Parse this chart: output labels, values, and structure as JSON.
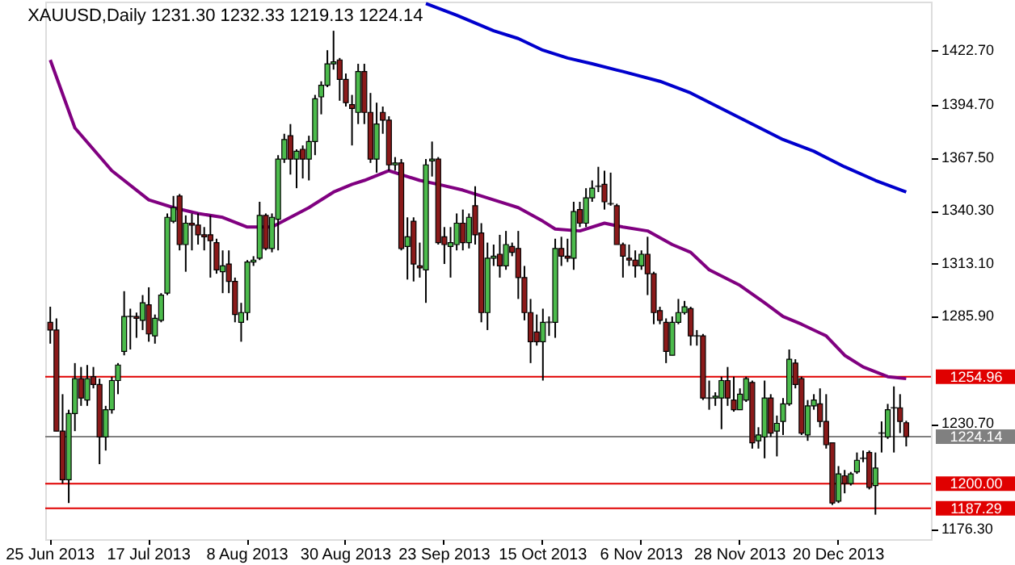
{
  "chart_data": {
    "type": "candlestick",
    "title": "XAUUSD,Daily  1231.30 1232.33 1219.13 1224.14",
    "categories": [
      "25 Jun 2013",
      null,
      null,
      null,
      null,
      null,
      null,
      null,
      null,
      null,
      null,
      null,
      null,
      null,
      null,
      null,
      "17 Jul 2013",
      null,
      null,
      null,
      null,
      null,
      null,
      null,
      null,
      null,
      null,
      null,
      null,
      null,
      null,
      null,
      "8 Aug 2013",
      null,
      null,
      null,
      null,
      null,
      null,
      null,
      null,
      null,
      null,
      null,
      null,
      null,
      null,
      null,
      "30 Aug 2013",
      null,
      null,
      null,
      null,
      null,
      null,
      null,
      null,
      null,
      null,
      null,
      null,
      null,
      null,
      null,
      "23 Sep 2013",
      null,
      null,
      null,
      null,
      null,
      null,
      null,
      null,
      null,
      null,
      null,
      null,
      null,
      null,
      null,
      "15 Oct 2013",
      null,
      null,
      null,
      null,
      null,
      null,
      null,
      null,
      null,
      null,
      null,
      null,
      null,
      null,
      null,
      "6 Nov 2013",
      null,
      null,
      null,
      null,
      null,
      null,
      null,
      null,
      null,
      null,
      null,
      null,
      null,
      null,
      null,
      "28 Nov 2013",
      null,
      null,
      null,
      null,
      null,
      null,
      null,
      null,
      null,
      null,
      null,
      null,
      null,
      null,
      null,
      "20 Dec 2013",
      null,
      null,
      null,
      null,
      null,
      null,
      null,
      null,
      null,
      null,
      null
    ],
    "ohlc": [
      [
        1283,
        1291,
        1272,
        1279
      ],
      [
        1279,
        1285,
        1227,
        1227
      ],
      [
        1227,
        1246,
        1200,
        1202
      ],
      [
        1202,
        1238,
        1190,
        1236
      ],
      [
        1236,
        1262,
        1227,
        1254
      ],
      [
        1254,
        1260,
        1240,
        1244
      ],
      [
        1243,
        1261,
        1240,
        1254
      ],
      [
        1255,
        1260,
        1249,
        1251
      ],
      [
        1251,
        1254,
        1210,
        1224
      ],
      [
        1224,
        1240,
        1217,
        1238
      ],
      [
        1238,
        1255,
        1236,
        1253
      ],
      [
        1253,
        1262,
        1246,
        1261
      ],
      [
        1268,
        1299,
        1266,
        1286
      ],
      [
        1286,
        1290,
        1269,
        1286
      ],
      [
        1286,
        1288,
        1275,
        1285
      ],
      [
        1284,
        1297,
        1279,
        1293
      ],
      [
        1292,
        1301,
        1273,
        1277
      ],
      [
        1276,
        1287,
        1272,
        1285
      ],
      [
        1284,
        1298,
        1283,
        1297
      ],
      [
        1298,
        1339,
        1297,
        1337
      ],
      [
        1335,
        1348,
        1334,
        1342
      ],
      [
        1348,
        1349,
        1320,
        1323
      ],
      [
        1323,
        1338,
        1309,
        1334
      ],
      [
        1334,
        1339,
        1320,
        1333
      ],
      [
        1333,
        1339,
        1323,
        1328
      ],
      [
        1328,
        1332,
        1320,
        1327
      ],
      [
        1328,
        1338,
        1306,
        1325
      ],
      [
        1324,
        1326,
        1308,
        1310
      ],
      [
        1309,
        1320,
        1298,
        1312
      ],
      [
        1313,
        1320,
        1298,
        1304
      ],
      [
        1304,
        1306,
        1283,
        1287
      ],
      [
        1283,
        1293,
        1273,
        1288
      ],
      [
        1288,
        1315,
        1284,
        1314
      ],
      [
        1314,
        1317,
        1312,
        1315
      ],
      [
        1316,
        1345,
        1315,
        1338
      ],
      [
        1338,
        1339,
        1320,
        1321
      ],
      [
        1321,
        1339,
        1319,
        1337
      ],
      [
        1336,
        1369,
        1320,
        1367
      ],
      [
        1367,
        1380,
        1365,
        1377
      ],
      [
        1379,
        1385,
        1359,
        1367
      ],
      [
        1367,
        1372,
        1352,
        1371
      ],
      [
        1372,
        1374,
        1357,
        1367
      ],
      [
        1367,
        1379,
        1356,
        1376
      ],
      [
        1376,
        1400,
        1369,
        1398
      ],
      [
        1399,
        1407,
        1390,
        1405
      ],
      [
        1405,
        1423,
        1404,
        1416
      ],
      [
        1416,
        1433,
        1413,
        1417
      ],
      [
        1418,
        1419,
        1397,
        1408
      ],
      [
        1408,
        1411,
        1394,
        1396
      ],
      [
        1395,
        1400,
        1374,
        1393
      ],
      [
        1391,
        1416,
        1385,
        1412
      ],
      [
        1412,
        1416,
        1385,
        1391
      ],
      [
        1391,
        1401,
        1365,
        1367
      ],
      [
        1367,
        1396,
        1360,
        1385
      ],
      [
        1391,
        1394,
        1380,
        1387
      ],
      [
        1387,
        1389,
        1361,
        1364
      ],
      [
        1364,
        1368,
        1361,
        1365
      ],
      [
        1365,
        1367,
        1320,
        1321
      ],
      [
        1322,
        1337,
        1305,
        1327
      ],
      [
        1335,
        1337,
        1304,
        1313
      ],
      [
        1312,
        1324,
        1306,
        1311
      ],
      [
        1310,
        1367,
        1293,
        1364
      ],
      [
        1366,
        1376,
        1358,
        1367
      ],
      [
        1367,
        1368,
        1323,
        1324
      ],
      [
        1327,
        1332,
        1313,
        1323
      ],
      [
        1322,
        1332,
        1306,
        1324
      ],
      [
        1323,
        1339,
        1320,
        1334
      ],
      [
        1334,
        1341,
        1320,
        1324
      ],
      [
        1324,
        1339,
        1321,
        1337
      ],
      [
        1343,
        1353,
        1323,
        1328
      ],
      [
        1329,
        1334,
        1283,
        1288
      ],
      [
        1288,
        1324,
        1279,
        1316
      ],
      [
        1316,
        1323,
        1312,
        1317
      ],
      [
        1318,
        1328,
        1306,
        1312
      ],
      [
        1312,
        1330,
        1310,
        1323
      ],
      [
        1322,
        1324,
        1317,
        1319
      ],
      [
        1321,
        1330,
        1295,
        1306
      ],
      [
        1306,
        1312,
        1284,
        1288
      ],
      [
        1288,
        1295,
        1262,
        1273
      ],
      [
        1278,
        1287,
        1271,
        1273
      ],
      [
        1273,
        1290,
        1253,
        1283
      ],
      [
        1283,
        1286,
        1276,
        1283
      ],
      [
        1283,
        1326,
        1275,
        1321
      ],
      [
        1321,
        1327,
        1312,
        1317
      ],
      [
        1317,
        1326,
        1314,
        1316
      ],
      [
        1316,
        1345,
        1310,
        1340
      ],
      [
        1341,
        1345,
        1332,
        1334
      ],
      [
        1334,
        1352,
        1332,
        1347
      ],
      [
        1347,
        1356,
        1345,
        1352
      ],
      [
        1353,
        1363,
        1350,
        1353
      ],
      [
        1354,
        1361,
        1341,
        1345
      ],
      [
        1344,
        1360,
        1343,
        1344
      ],
      [
        1343,
        1344,
        1323,
        1323
      ],
      [
        1323,
        1324,
        1306,
        1317
      ],
      [
        1316,
        1323,
        1312,
        1315
      ],
      [
        1315,
        1320,
        1306,
        1312
      ],
      [
        1312,
        1320,
        1310,
        1318
      ],
      [
        1318,
        1327,
        1297,
        1308
      ],
      [
        1308,
        1309,
        1282,
        1288
      ],
      [
        1289,
        1291,
        1282,
        1284
      ],
      [
        1283,
        1285,
        1262,
        1268
      ],
      [
        1266,
        1286,
        1266,
        1283
      ],
      [
        1283,
        1295,
        1282,
        1288
      ],
      [
        1288,
        1294,
        1287,
        1291
      ],
      [
        1290,
        1291,
        1271,
        1276
      ],
      [
        1276,
        1279,
        1271,
        1276
      ],
      [
        1276,
        1277,
        1243,
        1244
      ],
      [
        1244,
        1253,
        1238,
        1244
      ],
      [
        1244,
        1247,
        1240,
        1245
      ],
      [
        1244,
        1255,
        1228,
        1253
      ],
      [
        1253,
        1260,
        1240,
        1244
      ],
      [
        1243,
        1255,
        1237,
        1238
      ],
      [
        1238,
        1249,
        1238,
        1246
      ],
      [
        1243,
        1255,
        1242,
        1254
      ],
      [
        1252,
        1253,
        1218,
        1221
      ],
      [
        1222,
        1229,
        1218,
        1225
      ],
      [
        1224,
        1253,
        1213,
        1244
      ],
      [
        1244,
        1246,
        1224,
        1226
      ],
      [
        1227,
        1235,
        1214,
        1231
      ],
      [
        1232,
        1244,
        1225,
        1241
      ],
      [
        1241,
        1269,
        1240,
        1264
      ],
      [
        1262,
        1264,
        1249,
        1251
      ],
      [
        1254,
        1255,
        1225,
        1226
      ],
      [
        1225,
        1243,
        1222,
        1240
      ],
      [
        1240,
        1246,
        1238,
        1243
      ],
      [
        1241,
        1249,
        1229,
        1232
      ],
      [
        1232,
        1246,
        1218,
        1220
      ],
      [
        1221,
        1221,
        1189,
        1190
      ],
      [
        1191,
        1209,
        1190,
        1205
      ],
      [
        1204,
        1207,
        1195,
        1200
      ],
      [
        1200,
        1206,
        1199,
        1205
      ],
      [
        1206,
        1216,
        1205,
        1212
      ],
      [
        1213,
        1217,
        1211,
        1213
      ],
      [
        1216,
        1217,
        1197,
        1198
      ],
      [
        1199,
        1216,
        1184,
        1208
      ],
      [
        1226,
        1232,
        1216,
        1226
      ],
      [
        1224,
        1241,
        1223,
        1238
      ],
      [
        1239,
        1250,
        1216,
        1239
      ],
      [
        1239,
        1246,
        1226,
        1232
      ],
      [
        1231.3,
        1232.33,
        1219.13,
        1224.14
      ]
    ],
    "series": [
      {
        "type": "line",
        "color": "#800080",
        "values": [
          1418,
          null,
          null,
          null,
          1383,
          null,
          null,
          null,
          null,
          null,
          1361,
          null,
          null,
          null,
          null,
          null,
          1346,
          null,
          null,
          null,
          1342,
          null,
          null,
          null,
          1339,
          null,
          null,
          null,
          1337,
          null,
          null,
          null,
          1332,
          null,
          null,
          null,
          1332,
          null,
          null,
          1337,
          null,
          null,
          1342,
          null,
          null,
          null,
          1350,
          null,
          null,
          1354,
          null,
          1356,
          null,
          null,
          null,
          1361,
          null,
          1359,
          null,
          null,
          1356,
          null,
          null,
          1354,
          null,
          null,
          null,
          1351,
          null,
          null,
          null,
          null,
          1346,
          null,
          null,
          null,
          1342,
          null,
          null,
          null,
          1335,
          null,
          1331,
          null,
          null,
          null,
          1330,
          null,
          null,
          null,
          1334,
          null,
          null,
          1332,
          null,
          null,
          null,
          1330,
          null,
          null,
          null,
          1323,
          null,
          null,
          1319,
          null,
          null,
          1310,
          null,
          null,
          null,
          null,
          1302,
          null,
          null,
          null,
          1293,
          null,
          null,
          1286,
          null,
          null,
          1282,
          null,
          null,
          null,
          1276,
          null,
          null,
          1266,
          null,
          null,
          1260,
          null,
          null,
          null,
          1255,
          null,
          null,
          1254
        ]
      },
      {
        "type": "line",
        "color": "#0000cd",
        "values": [
          null,
          null,
          null,
          null,
          null,
          null,
          null,
          null,
          null,
          null,
          null,
          null,
          null,
          null,
          null,
          null,
          null,
          null,
          null,
          null,
          null,
          null,
          null,
          null,
          null,
          null,
          null,
          null,
          null,
          null,
          null,
          null,
          null,
          null,
          null,
          null,
          null,
          null,
          null,
          null,
          null,
          null,
          null,
          null,
          null,
          null,
          null,
          null,
          null,
          null,
          null,
          null,
          null,
          null,
          null,
          null,
          null,
          null,
          null,
          null,
          null,
          1447,
          null,
          null,
          null,
          null,
          1441,
          null,
          null,
          null,
          null,
          null,
          1433,
          null,
          null,
          null,
          1429,
          null,
          null,
          null,
          1423,
          null,
          null,
          null,
          1419,
          null,
          null,
          null,
          1416,
          null,
          null,
          null,
          null,
          1412,
          null,
          null,
          null,
          null,
          null,
          1407,
          null,
          null,
          null,
          null,
          1401,
          null,
          null,
          null,
          null,
          1393,
          null,
          null,
          null,
          null,
          1385,
          null,
          null,
          null,
          null,
          1377,
          null,
          null,
          null,
          null,
          1371,
          null,
          null,
          null,
          null,
          1363,
          null,
          null,
          null,
          null,
          1356,
          null,
          null,
          null,
          null,
          1350
        ]
      }
    ],
    "ylim": [
      1171.4,
      1448.0
    ],
    "yticks": [
      {
        "value": 1422.7,
        "label": "1422.70"
      },
      {
        "value": 1394.7,
        "label": "1394.70"
      },
      {
        "value": 1367.5,
        "label": "1367.50"
      },
      {
        "value": 1340.3,
        "label": "1340.30"
      },
      {
        "value": 1313.1,
        "label": "1313.10"
      },
      {
        "value": 1285.9,
        "label": "1285.90"
      },
      {
        "value": 1230.7,
        "label": "1230.70"
      },
      {
        "value": 1176.3,
        "label": "1176.30"
      }
    ],
    "ref_lines": [
      {
        "axis": "y",
        "value": 1254.96,
        "label": "1254.96",
        "color": "#e00000"
      },
      {
        "axis": "y",
        "value": 1224.14,
        "label": "1224.14",
        "color": "#808080"
      },
      {
        "axis": "y",
        "value": 1200.0,
        "label": "1200.00",
        "color": "#e00000"
      },
      {
        "axis": "y",
        "value": 1187.29,
        "label": "1187.29",
        "color": "#e00000"
      }
    ],
    "grid": false
  }
}
